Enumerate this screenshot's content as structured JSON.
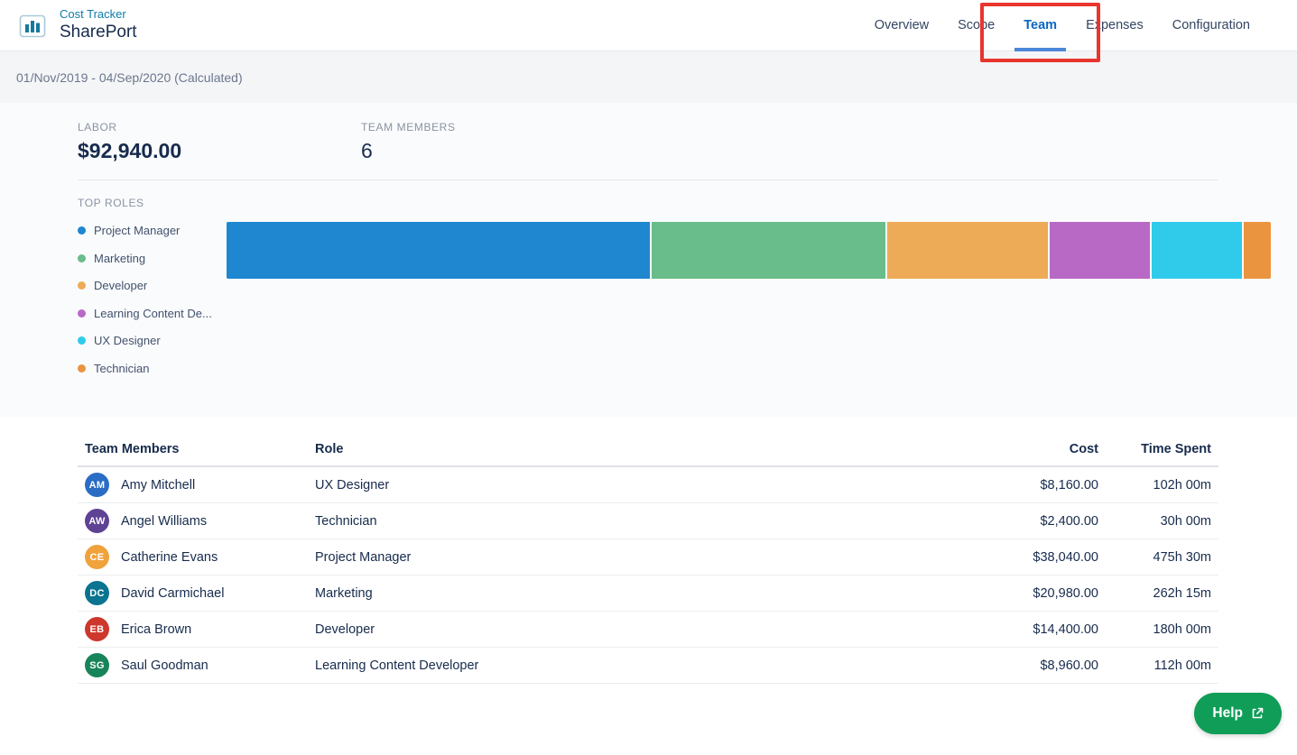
{
  "header": {
    "app_label": "Cost Tracker",
    "project_name": "SharePort",
    "tabs": [
      {
        "label": "Overview",
        "active": false
      },
      {
        "label": "Scope",
        "active": false
      },
      {
        "label": "Team",
        "active": true
      },
      {
        "label": "Expenses",
        "active": false
      },
      {
        "label": "Configuration",
        "active": false
      }
    ]
  },
  "annotation": {
    "type": "highlight-box",
    "target": "tab-team",
    "color": "#e8352e"
  },
  "date_bar": {
    "text": "01/Nov/2019 - 04/Sep/2020 (Calculated)"
  },
  "summary": {
    "labor": {
      "label": "LABOR",
      "value": "$92,940.00"
    },
    "team_members": {
      "label": "TEAM MEMBERS",
      "value": "6"
    },
    "top_roles_label": "TOP ROLES"
  },
  "chart_data": {
    "type": "bar",
    "variant": "horizontal-stacked-single-track",
    "title": "Top Roles cost distribution",
    "categories": [
      "Project Manager",
      "Marketing",
      "Developer",
      "Learning Content De...",
      "UX Designer",
      "Technician"
    ],
    "values": [
      38040,
      20980,
      14400,
      8960,
      8160,
      2400
    ],
    "total": 92940,
    "unit": "USD",
    "colors": [
      "#1e87d0",
      "#69bd8a",
      "#edab57",
      "#b869c6",
      "#30cbea",
      "#ea9440"
    ],
    "legend_position": "left",
    "axes": "none"
  },
  "table": {
    "columns": [
      "Team Members",
      "Role",
      "Cost",
      "Time Spent"
    ],
    "rows": [
      {
        "initials": "AM",
        "avatar_color": "#2b6cc4",
        "name": "Amy Mitchell",
        "role": "UX Designer",
        "cost": "$8,160.00",
        "time_spent": "102h 00m"
      },
      {
        "initials": "AW",
        "avatar_color": "#5e4294",
        "name": "Angel Williams",
        "role": "Technician",
        "cost": "$2,400.00",
        "time_spent": "30h 00m"
      },
      {
        "initials": "CE",
        "avatar_color": "#f0a23c",
        "name": "Catherine Evans",
        "role": "Project Manager",
        "cost": "$38,040.00",
        "time_spent": "475h 30m"
      },
      {
        "initials": "DC",
        "avatar_color": "#0b7490",
        "name": "David Carmichael",
        "role": "Marketing",
        "cost": "$20,980.00",
        "time_spent": "262h 15m"
      },
      {
        "initials": "EB",
        "avatar_color": "#ce372c",
        "name": "Erica Brown",
        "role": "Developer",
        "cost": "$14,400.00",
        "time_spent": "180h 00m"
      },
      {
        "initials": "SG",
        "avatar_color": "#18845a",
        "name": "Saul Goodman",
        "role": "Learning Content Developer",
        "cost": "$8,960.00",
        "time_spent": "112h 00m"
      }
    ]
  },
  "help_button": {
    "label": "Help",
    "icon": "external-link-icon",
    "color": "#0f9d58"
  }
}
